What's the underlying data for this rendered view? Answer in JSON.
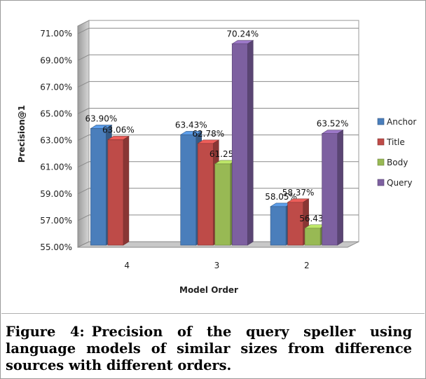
{
  "chart_data": {
    "type": "bar",
    "categories": [
      "4",
      "3",
      "2"
    ],
    "series": [
      {
        "name": "Anchor",
        "color": "#4a7ebb",
        "values": [
          63.9,
          63.43,
          58.05
        ],
        "labels": [
          "63.90%",
          "63.43%",
          "58.05%"
        ]
      },
      {
        "name": "Title",
        "color": "#be4b48",
        "values": [
          63.06,
          62.78,
          58.37
        ],
        "labels": [
          "63.06%",
          "62.78%",
          "58.37%"
        ]
      },
      {
        "name": "Body",
        "color": "#98b954",
        "values": [
          null,
          61.25,
          56.43
        ],
        "labels": [
          null,
          "61.25%",
          "56.43%"
        ]
      },
      {
        "name": "Query",
        "color": "#7d60a0",
        "values": [
          null,
          70.24,
          63.52
        ],
        "labels": [
          null,
          "70.24%",
          "63.52%"
        ]
      }
    ],
    "xlabel": "Model Order",
    "ylabel": "Precision@1",
    "ylim": [
      55,
      72
    ],
    "yticks": [
      "55.00%",
      "57.00%",
      "59.00%",
      "61.00%",
      "63.00%",
      "65.00%",
      "67.00%",
      "69.00%",
      "71.00%"
    ],
    "ytick_values": [
      55,
      57,
      59,
      61,
      63,
      65,
      67,
      69,
      71
    ],
    "grid": true,
    "legend": "right",
    "three_d": true
  },
  "caption": {
    "label": "Figure 4:",
    "text": "Precision of the query speller using language models of similar sizes from difference sources with different orders."
  }
}
